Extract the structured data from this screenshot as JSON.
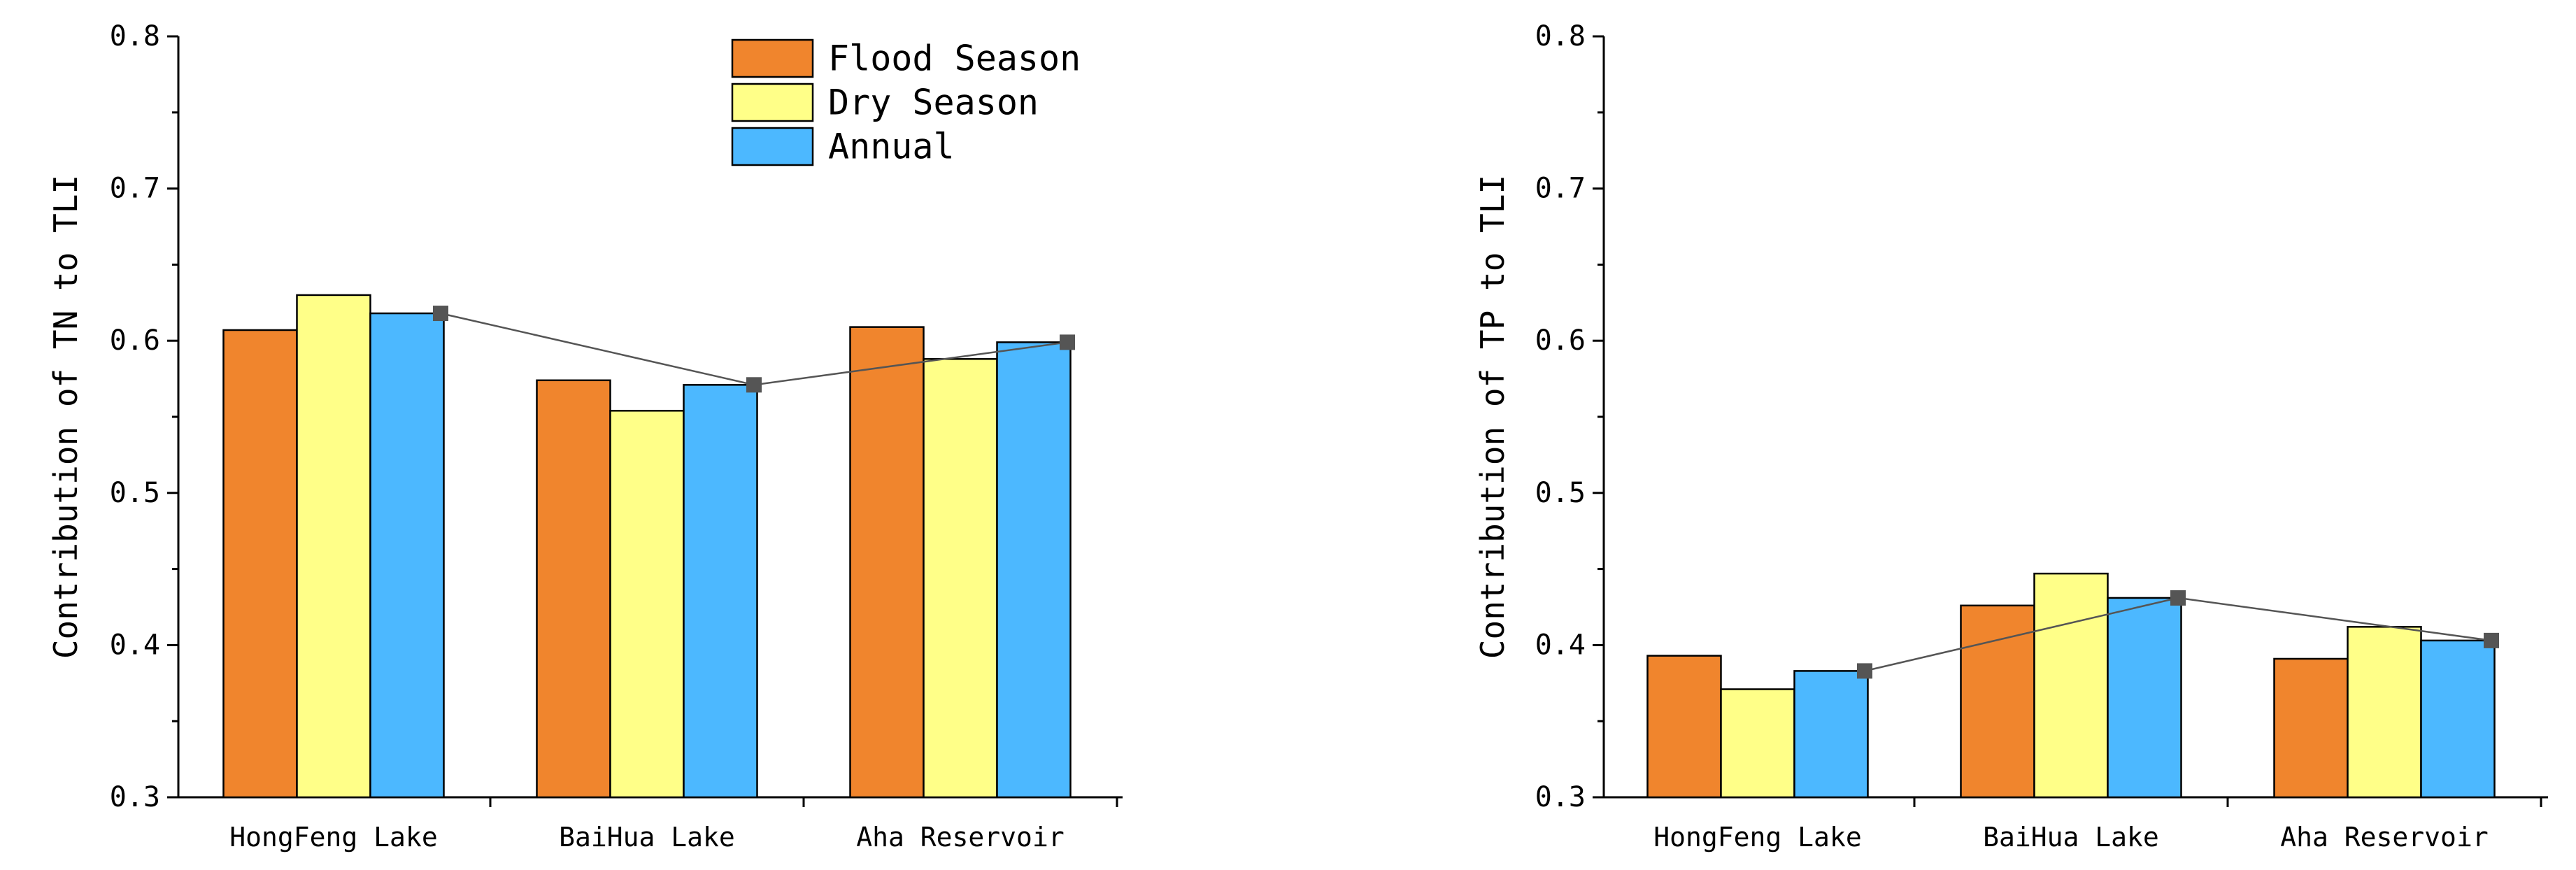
{
  "colors": {
    "flood": "#F0852D",
    "dry": "#FFFF88",
    "annual": "#4CB8FF",
    "trend": "#555555"
  },
  "chart_data": [
    {
      "type": "bar",
      "ylabel": "Contribution of TN to TLI",
      "xlabel": "",
      "ylim": [
        0.3,
        0.8
      ],
      "yticks": [
        "0.3",
        "0.4",
        "0.5",
        "0.6",
        "0.7",
        "0.8"
      ],
      "categories": [
        "HongFeng Lake",
        "BaiHua Lake",
        "Aha Reservoir"
      ],
      "series": [
        {
          "name": "Flood Season",
          "key": "flood",
          "values": [
            0.607,
            0.574,
            0.609
          ]
        },
        {
          "name": "Dry Season",
          "key": "dry",
          "values": [
            0.63,
            0.554,
            0.588
          ]
        },
        {
          "name": "Annual",
          "key": "annual",
          "values": [
            0.618,
            0.571,
            0.599
          ]
        }
      ],
      "trend_line": {
        "series": "Annual",
        "values": [
          0.618,
          0.571,
          0.599
        ]
      },
      "legend": {
        "position": "top-right",
        "entries": [
          "Flood Season",
          "Dry Season",
          "Annual"
        ]
      }
    },
    {
      "type": "bar",
      "ylabel": "Contribution of TP to TLI",
      "xlabel": "",
      "ylim": [
        0.3,
        0.8
      ],
      "yticks": [
        "0.3",
        "0.4",
        "0.5",
        "0.6",
        "0.7",
        "0.8"
      ],
      "categories": [
        "HongFeng Lake",
        "BaiHua Lake",
        "Aha Reservoir"
      ],
      "series": [
        {
          "name": "Flood Season",
          "key": "flood",
          "values": [
            0.393,
            0.426,
            0.391
          ]
        },
        {
          "name": "Dry Season",
          "key": "dry",
          "values": [
            0.371,
            0.447,
            0.412
          ]
        },
        {
          "name": "Annual",
          "key": "annual",
          "values": [
            0.383,
            0.431,
            0.403
          ]
        }
      ],
      "trend_line": {
        "series": "Annual",
        "values": [
          0.383,
          0.431,
          0.403
        ]
      }
    }
  ]
}
